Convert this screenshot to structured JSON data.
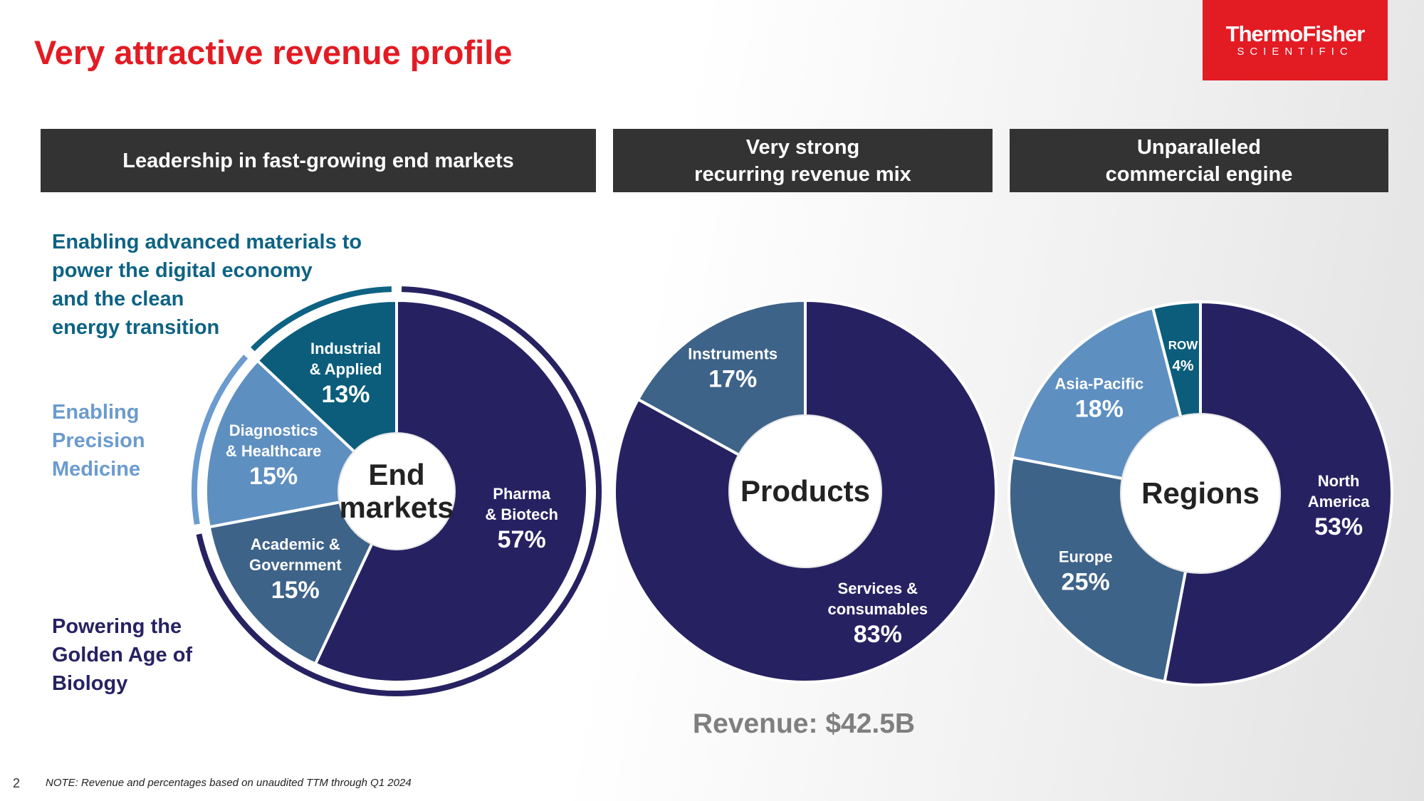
{
  "title": "Very attractive revenue profile",
  "logo": {
    "name": "ThermoFisher",
    "subtitle": "SCIENTIFIC"
  },
  "headers": [
    "Leadership in fast-growing end markets",
    "Very strong\nrecurring revenue mix",
    "Unparalleled\ncommercial engine"
  ],
  "annotations": [
    {
      "text": "Enabling advanced materials to\npower the digital economy\nand the clean\nenergy transition",
      "color": "#0e6384"
    },
    {
      "text": "Enabling\nPrecision\nMedicine",
      "color": "#6b9bcf"
    },
    {
      "text": "Powering the\nGolden Age of\nBiology",
      "color": "#262262"
    }
  ],
  "revenue": "Revenue: $42.5B",
  "page_number": "2",
  "note": "NOTE: Revenue and percentages based on unaudited TTM through Q1 2024",
  "chart_data": [
    {
      "type": "donut",
      "center_label": "End\nmarkets",
      "categories": [
        "Pharma\n& Biotech",
        "Academic &\nGovernment",
        "Diagnostics\n& Healthcare",
        "Industrial\n& Applied"
      ],
      "values": [
        57,
        15,
        15,
        13
      ],
      "value_labels": [
        "57%",
        "15%",
        "15%",
        "13%"
      ],
      "colors": [
        "#262262",
        "#3e6389",
        "#5e8fc1",
        "#0b5d7b"
      ],
      "ring_colors": [
        "#262262",
        "#262262",
        "#6b9bcf",
        "#0e6384"
      ]
    },
    {
      "type": "donut",
      "center_label": "Products",
      "categories": [
        "Services &\nconsumables",
        "Instruments"
      ],
      "values": [
        83,
        17
      ],
      "value_labels": [
        "83%",
        "17%"
      ],
      "colors": [
        "#262262",
        "#3e6389"
      ]
    },
    {
      "type": "donut",
      "center_label": "Regions",
      "categories": [
        "North\nAmerica",
        "Europe",
        "Asia-Pacific",
        "ROW"
      ],
      "values": [
        53,
        25,
        18,
        4
      ],
      "value_labels": [
        "53%",
        "25%",
        "18%",
        "4%"
      ],
      "colors": [
        "#262262",
        "#3e6389",
        "#5e8fc1",
        "#0b5d7b"
      ]
    }
  ]
}
